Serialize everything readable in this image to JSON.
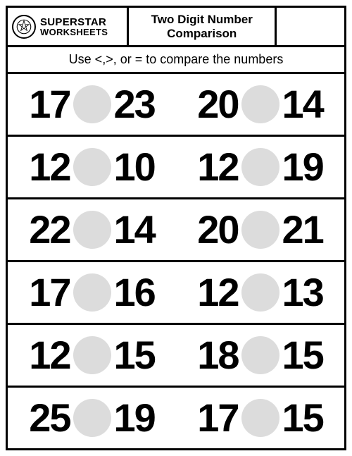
{
  "logo": {
    "line1": "SUPERSTAR",
    "line2": "WORKSHEETS"
  },
  "title": {
    "line1": "Two Digit Number",
    "line2": "Comparison"
  },
  "instruction": "Use <,>, or = to compare the numbers",
  "circle_color": "#dcdcdc",
  "rows": [
    {
      "left": {
        "a": "17",
        "b": "23"
      },
      "right": {
        "a": "20",
        "b": "14"
      }
    },
    {
      "left": {
        "a": "12",
        "b": "10"
      },
      "right": {
        "a": "12",
        "b": "19"
      }
    },
    {
      "left": {
        "a": "22",
        "b": "14"
      },
      "right": {
        "a": "20",
        "b": "21"
      }
    },
    {
      "left": {
        "a": "17",
        "b": "16"
      },
      "right": {
        "a": "12",
        "b": "13"
      }
    },
    {
      "left": {
        "a": "12",
        "b": "15"
      },
      "right": {
        "a": "18",
        "b": "15"
      }
    },
    {
      "left": {
        "a": "25",
        "b": "19"
      },
      "right": {
        "a": "17",
        "b": "15"
      }
    }
  ]
}
